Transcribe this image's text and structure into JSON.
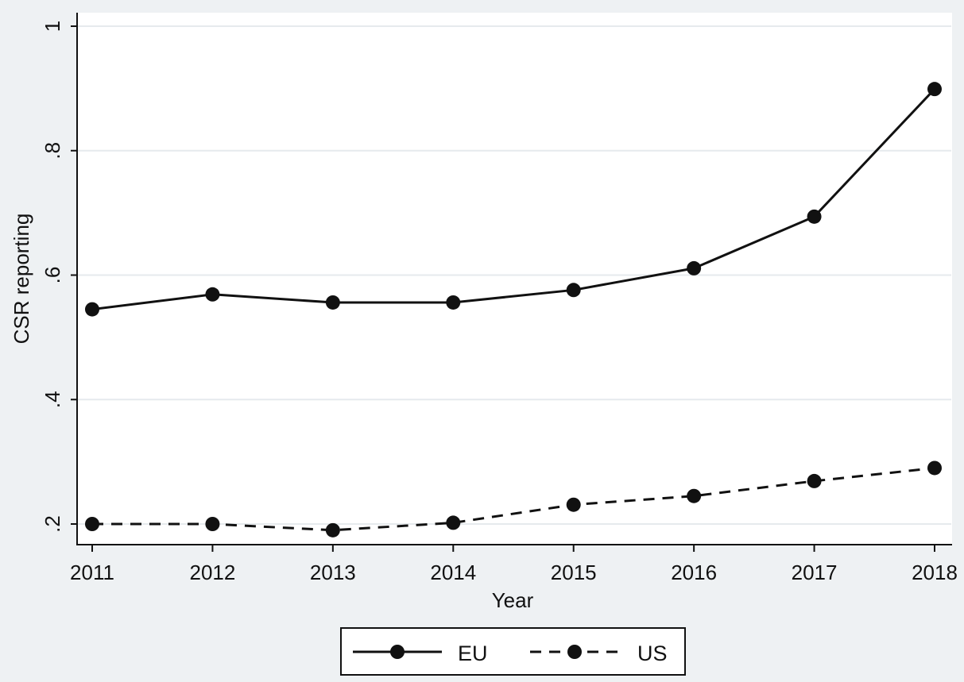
{
  "chart_data": {
    "type": "line",
    "title": "",
    "xlabel": "Year",
    "ylabel": "CSR reporting",
    "x": [
      2011,
      2012,
      2013,
      2014,
      2015,
      2016,
      2017,
      2018
    ],
    "x_tick_labels": [
      "2011",
      "2012",
      "2013",
      "2014",
      "2015",
      "2016",
      "2017",
      "2018"
    ],
    "y_ticks": [
      0.2,
      0.4,
      0.6,
      0.8,
      1.0
    ],
    "y_tick_labels": [
      ".2",
      ".4",
      ".6",
      ".8",
      "1"
    ],
    "ylim": [
      0.2,
      1.0
    ],
    "grid": true,
    "legend_position": "bottom-center",
    "series": [
      {
        "name": "EU",
        "line_style": "solid",
        "marker": "filled-circle",
        "color": "#111111",
        "values": [
          0.545,
          0.569,
          0.556,
          0.556,
          0.576,
          0.611,
          0.694,
          0.899
        ]
      },
      {
        "name": "US",
        "line_style": "dashed",
        "marker": "filled-circle",
        "color": "#111111",
        "values": [
          0.2,
          0.2,
          0.19,
          0.202,
          0.231,
          0.245,
          0.269,
          0.29
        ]
      }
    ]
  },
  "colors": {
    "background": "#eef1f3",
    "plot_background": "#ffffff",
    "gridline": "#e6eaed",
    "ink": "#111111"
  }
}
